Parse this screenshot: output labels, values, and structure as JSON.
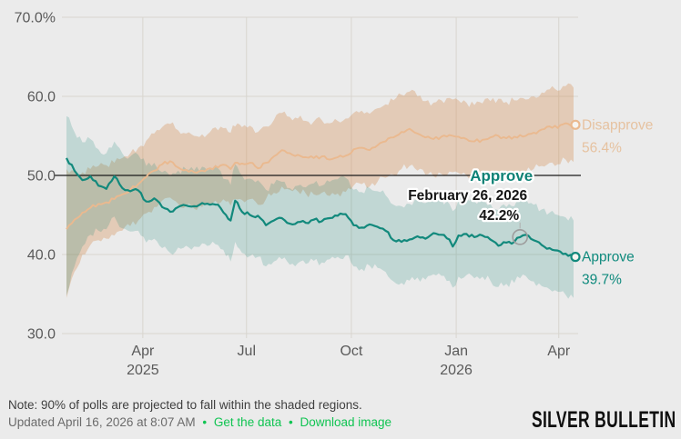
{
  "page": {
    "background": "#ebebeb"
  },
  "footer": {
    "note": "Note: 90% of polls are projected to fall within the shaded regions.",
    "updated": "Updated April 16, 2026 at 8:07 AM",
    "separator": "•",
    "links": [
      {
        "label": "Get the data"
      },
      {
        "label": "Download image"
      }
    ],
    "link_color": "#10c452",
    "logo": "SILVER BULLETIN"
  },
  "chart_data": {
    "type": "line",
    "title": "",
    "xlabel": "",
    "ylabel": "",
    "ylim": [
      30,
      70
    ],
    "grid": true,
    "band_note": "shaded regions = 90% projection interval around each series",
    "domain": {
      "start": "2025-01-20",
      "end": "2026-04-14"
    },
    "x_axis": {
      "ticks": [
        {
          "label": "Apr",
          "year": "2025",
          "date": "2025-04-01"
        },
        {
          "label": "Jul",
          "year": "",
          "date": "2025-07-01"
        },
        {
          "label": "Oct",
          "year": "",
          "date": "2025-10-01"
        },
        {
          "label": "Jan",
          "year": "2026",
          "date": "2026-01-01"
        },
        {
          "label": "Apr",
          "year": "",
          "date": "2026-04-01"
        }
      ]
    },
    "y_axis": {
      "ticks": [
        {
          "label": "70.0%",
          "value": 70
        },
        {
          "label": "60.0",
          "value": 60
        },
        {
          "label": "50.0",
          "value": 50
        },
        {
          "label": "40.0",
          "value": 40
        },
        {
          "label": "30.0",
          "value": 30
        }
      ],
      "reference_line": 50
    },
    "dates": [
      "2025-01-24",
      "2025-01-31",
      "2025-02-07",
      "2025-02-14",
      "2025-02-21",
      "2025-02-28",
      "2025-03-07",
      "2025-03-14",
      "2025-03-21",
      "2025-03-28",
      "2025-04-04",
      "2025-04-11",
      "2025-04-18",
      "2025-04-25",
      "2025-05-02",
      "2025-05-09",
      "2025-05-16",
      "2025-05-23",
      "2025-05-30",
      "2025-06-06",
      "2025-06-13",
      "2025-06-17",
      "2025-06-21",
      "2025-06-27",
      "2025-07-04",
      "2025-07-11",
      "2025-07-18",
      "2025-07-25",
      "2025-08-01",
      "2025-08-08",
      "2025-08-15",
      "2025-08-22",
      "2025-08-29",
      "2025-09-05",
      "2025-09-12",
      "2025-09-19",
      "2025-09-26",
      "2025-10-03",
      "2025-10-10",
      "2025-10-17",
      "2025-10-24",
      "2025-10-31",
      "2025-11-07",
      "2025-11-14",
      "2025-11-21",
      "2025-11-28",
      "2025-12-05",
      "2025-12-12",
      "2025-12-19",
      "2025-12-26",
      "2025-12-29",
      "2026-01-03",
      "2026-01-10",
      "2026-01-17",
      "2026-01-24",
      "2026-01-31",
      "2026-02-07",
      "2026-02-14",
      "2026-02-21",
      "2026-02-26",
      "2026-03-03",
      "2026-03-10",
      "2026-03-17",
      "2026-03-24",
      "2026-03-31",
      "2026-04-07",
      "2026-04-14"
    ],
    "series": [
      {
        "name": "Disapprove",
        "color": "#eab98f",
        "band_fill": "rgba(213,137,74,0.32)",
        "label_color": "#e6c2a0",
        "end_label": "Disapprove",
        "end_value_label": "56.4%",
        "end_value": 56.4,
        "values": [
          43.2,
          44.4,
          45.3,
          45.9,
          46.4,
          46.6,
          47.0,
          47.6,
          48.2,
          48.9,
          49.8,
          50.6,
          51.4,
          51.8,
          51.0,
          50.7,
          50.4,
          50.6,
          50.9,
          51.0,
          51.3,
          50.8,
          51.6,
          51.5,
          51.6,
          50.9,
          51.6,
          52.4,
          53.2,
          52.8,
          52.6,
          52.3,
          52.2,
          52.4,
          52.0,
          52.3,
          52.5,
          53.3,
          53.5,
          53.2,
          53.8,
          54.3,
          54.8,
          55.5,
          55.9,
          55.3,
          54.8,
          54.6,
          54.9,
          55.1,
          55.0,
          54.9,
          54.6,
          54.3,
          54.5,
          54.8,
          55.0,
          54.7,
          54.9,
          55.1,
          55.0,
          55.4,
          55.8,
          56.2,
          56.0,
          56.6,
          56.4
        ],
        "hi": [
          50.8,
          50.5,
          50.4,
          50.8,
          51.2,
          51.3,
          51.6,
          52.2,
          52.8,
          53.5,
          54.4,
          55.3,
          56.1,
          56.5,
          55.7,
          55.3,
          55.0,
          55.2,
          55.5,
          55.7,
          56.0,
          55.4,
          56.2,
          56.1,
          56.3,
          55.5,
          56.2,
          57.0,
          57.9,
          57.4,
          57.2,
          56.9,
          56.8,
          57.0,
          56.6,
          56.9,
          57.2,
          57.9,
          58.2,
          57.8,
          58.5,
          59.0,
          59.5,
          60.2,
          60.6,
          60.0,
          59.4,
          59.2,
          59.5,
          59.8,
          59.6,
          59.5,
          59.2,
          58.9,
          59.1,
          59.4,
          59.7,
          59.3,
          59.5,
          59.8,
          59.6,
          60.0,
          60.5,
          60.9,
          60.7,
          61.3,
          61.1
        ],
        "lo": [
          34.5,
          37.8,
          40.0,
          41.2,
          41.8,
          42.0,
          42.4,
          43.0,
          43.6,
          44.3,
          45.2,
          46.0,
          46.8,
          47.2,
          46.4,
          46.1,
          45.8,
          46.0,
          46.3,
          46.4,
          46.7,
          46.2,
          47.0,
          46.9,
          47.0,
          46.3,
          47.0,
          47.8,
          48.6,
          48.2,
          48.0,
          47.7,
          47.6,
          47.8,
          47.4,
          47.7,
          47.9,
          48.7,
          48.9,
          48.6,
          49.2,
          49.7,
          50.1,
          50.8,
          51.2,
          50.6,
          50.1,
          49.9,
          50.2,
          50.5,
          50.4,
          50.3,
          50.0,
          49.7,
          49.9,
          50.2,
          50.4,
          50.1,
          50.3,
          50.5,
          50.4,
          50.8,
          51.2,
          51.6,
          51.4,
          52.0,
          51.7
        ]
      },
      {
        "name": "Approve",
        "color": "#12897c",
        "band_fill": "rgba(27,134,122,0.20)",
        "label_color": "#0f8a7d",
        "end_label": "Approve",
        "end_value_label": "39.7%",
        "end_value": 39.7,
        "values": [
          52.2,
          50.6,
          49.4,
          49.9,
          48.7,
          48.3,
          49.9,
          48.4,
          48.0,
          48.1,
          46.7,
          47.1,
          46.0,
          45.4,
          46.0,
          46.2,
          46.1,
          46.5,
          46.3,
          46.3,
          45.0,
          44.3,
          46.8,
          45.4,
          45.0,
          44.9,
          43.7,
          44.3,
          44.6,
          43.9,
          44.1,
          44.0,
          44.4,
          44.2,
          44.6,
          44.9,
          45.1,
          43.7,
          43.4,
          43.8,
          43.5,
          43.0,
          41.8,
          41.6,
          41.9,
          42.3,
          42.0,
          42.7,
          42.5,
          41.9,
          41.0,
          42.4,
          42.6,
          42.2,
          42.4,
          41.9,
          41.1,
          41.5,
          41.6,
          42.2,
          42.5,
          41.8,
          41.2,
          40.8,
          40.5,
          40.1,
          39.7
        ],
        "hi": [
          57.5,
          55.5,
          54.2,
          54.6,
          53.3,
          52.8,
          54.3,
          52.8,
          52.4,
          52.6,
          51.2,
          51.6,
          50.4,
          49.9,
          50.6,
          50.8,
          50.6,
          51.1,
          50.8,
          50.9,
          49.5,
          48.8,
          51.4,
          50.0,
          49.6,
          49.4,
          48.2,
          48.9,
          49.2,
          48.4,
          48.7,
          48.5,
          49.0,
          48.7,
          49.2,
          49.5,
          49.7,
          48.2,
          47.9,
          48.4,
          48.0,
          47.5,
          46.3,
          46.1,
          46.4,
          46.9,
          46.5,
          47.3,
          47.0,
          46.4,
          45.5,
          46.9,
          47.2,
          46.7,
          46.9,
          46.4,
          45.6,
          46.0,
          46.1,
          46.8,
          47.1,
          46.3,
          45.7,
          45.3,
          45.0,
          44.7,
          44.3
        ],
        "lo": [
          34.8,
          38.5,
          41.0,
          42.5,
          43.0,
          43.2,
          44.8,
          43.3,
          42.9,
          43.0,
          41.5,
          42.0,
          40.8,
          40.2,
          40.9,
          41.1,
          41.0,
          41.4,
          41.2,
          41.2,
          39.8,
          39.1,
          41.6,
          40.2,
          39.8,
          39.7,
          38.5,
          39.1,
          39.4,
          38.7,
          38.9,
          38.8,
          39.2,
          39.0,
          39.4,
          39.7,
          39.9,
          38.5,
          38.2,
          38.6,
          38.3,
          37.8,
          36.6,
          36.4,
          36.7,
          37.1,
          36.8,
          37.5,
          37.3,
          36.7,
          35.8,
          37.2,
          37.4,
          37.0,
          37.2,
          36.7,
          35.9,
          36.3,
          36.4,
          37.0,
          37.3,
          36.6,
          36.0,
          35.6,
          35.3,
          34.9,
          34.5
        ]
      }
    ],
    "annotation": {
      "series_label": "Approve",
      "date_label": "February 26, 2026",
      "value_label": "42.2%",
      "date": "2026-02-26",
      "value": 42.2
    }
  }
}
